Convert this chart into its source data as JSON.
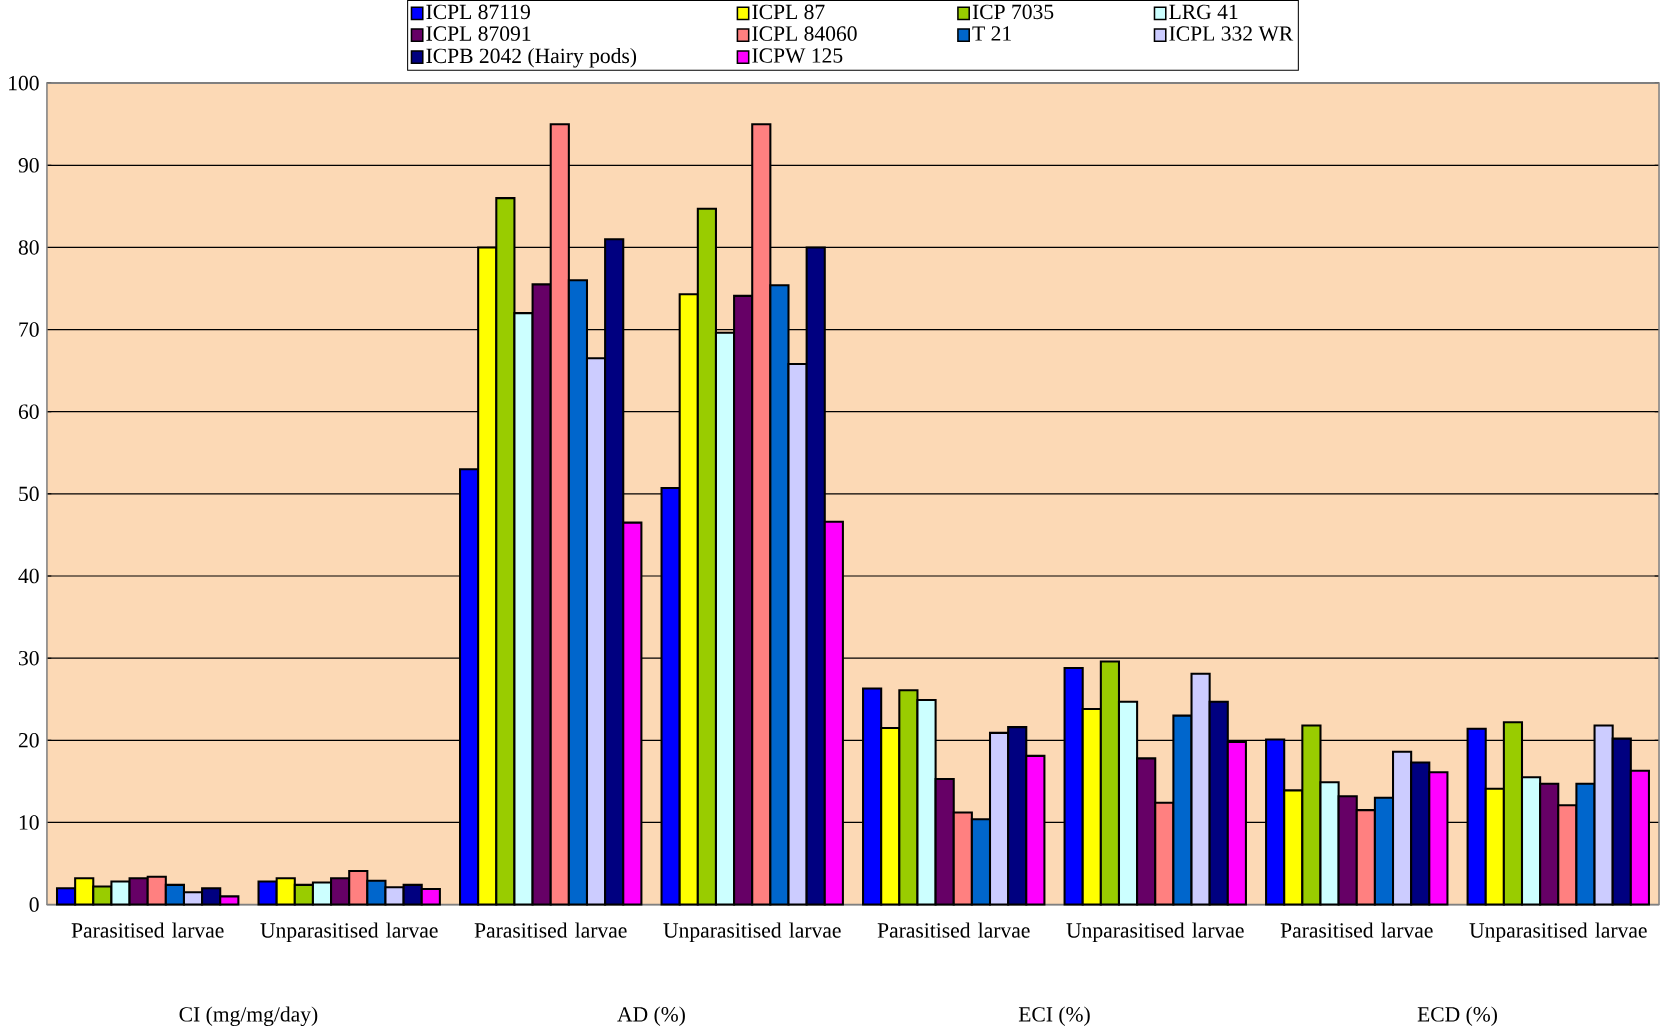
{
  "chart_data": {
    "type": "bar",
    "categories": [
      "Parasitised larvae",
      "Unparasitised larvae",
      "Parasitised larvae",
      "Unparasitised larvae",
      "Parasitised larvae",
      "Unparasitised larvae",
      "Parasitised larvae",
      "Unparasitised larvae"
    ],
    "annotations": [
      "CI (mg/mg/day)",
      "AD (%)",
      "ECI (%)",
      "ECD (%)"
    ],
    "series": [
      {
        "name": "ICPL 87119",
        "color": "#0000ff",
        "values": [
          2.0,
          2.8,
          53.0,
          50.7,
          26.3,
          28.8,
          20.1,
          21.4
        ]
      },
      {
        "name": "ICPL 87",
        "color": "#ffff00",
        "values": [
          3.2,
          3.2,
          80.0,
          74.3,
          21.5,
          23.8,
          13.9,
          14.1
        ]
      },
      {
        "name": "ICP 7035",
        "color": "#99cc00",
        "values": [
          2.2,
          2.4,
          86.0,
          84.7,
          26.1,
          29.6,
          21.8,
          22.2
        ]
      },
      {
        "name": "LRG 41",
        "color": "#ccffff",
        "values": [
          2.8,
          2.7,
          72.0,
          69.6,
          24.9,
          24.7,
          14.9,
          15.5
        ]
      },
      {
        "name": "ICPL 87091",
        "color": "#660066",
        "values": [
          3.2,
          3.2,
          75.5,
          74.1,
          15.3,
          17.8,
          13.2,
          14.7
        ]
      },
      {
        "name": "ICPL 84060",
        "color": "#ff8080",
        "values": [
          3.4,
          4.1,
          95.0,
          95.0,
          11.2,
          12.4,
          11.5,
          12.1
        ]
      },
      {
        "name": "T 21",
        "color": "#0066cc",
        "values": [
          2.4,
          2.9,
          76.0,
          75.4,
          10.4,
          23.0,
          13.0,
          14.7
        ]
      },
      {
        "name": "ICPL 332 WR",
        "color": "#ccccff",
        "values": [
          1.5,
          2.1,
          66.5,
          65.8,
          20.9,
          28.1,
          18.6,
          21.8
        ]
      },
      {
        "name": "ICPB 2042 (Hairy pods)",
        "color": "#000080",
        "values": [
          2.0,
          2.4,
          81.0,
          80.0,
          21.6,
          24.7,
          17.3,
          20.2
        ]
      },
      {
        "name": "ICPW 125",
        "color": "#ff00ff",
        "values": [
          1.0,
          1.9,
          46.5,
          46.6,
          18.1,
          19.8,
          16.1,
          16.3
        ]
      }
    ],
    "ylim": [
      0,
      100
    ],
    "yticks": [
      0,
      10,
      20,
      30,
      40,
      50,
      60,
      70,
      80,
      90,
      100
    ],
    "grid": "y",
    "legend": "top"
  }
}
